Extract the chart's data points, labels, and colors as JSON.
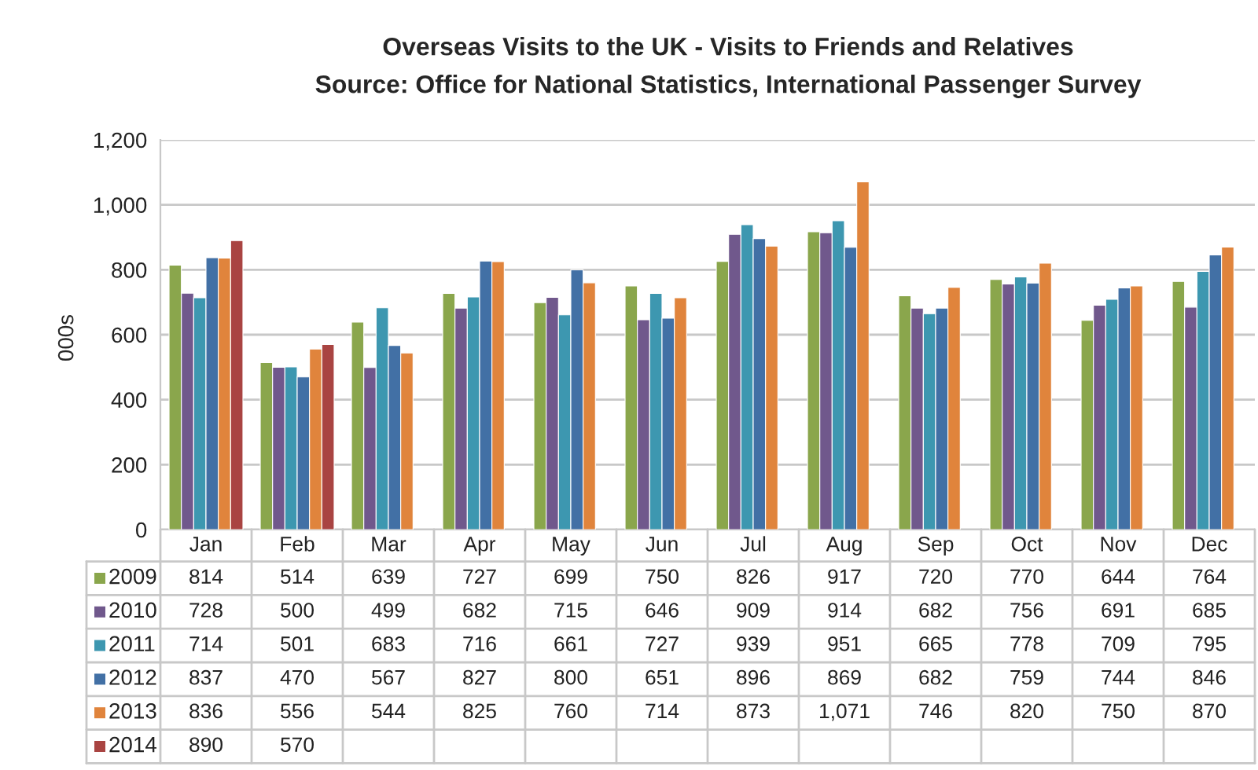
{
  "chart_data": {
    "type": "bar",
    "title": "Overseas Visits to the UK - Visits to Friends and Relatives",
    "annotations": [
      "Source: Office for National Statistics, International Passenger Survey"
    ],
    "ylabel": "000s",
    "categories": [
      "Jan",
      "Feb",
      "Mar",
      "Apr",
      "May",
      "Jun",
      "Jul",
      "Aug",
      "Sep",
      "Oct",
      "Nov",
      "Dec"
    ],
    "series": [
      {
        "name": "2009",
        "color": "#8aa64c",
        "values": [
          814,
          514,
          639,
          727,
          699,
          750,
          826,
          917,
          720,
          770,
          644,
          764
        ],
        "value_labels": [
          "814",
          "514",
          "639",
          "727",
          "699",
          "750",
          "826",
          "917",
          "720",
          "770",
          "644",
          "764"
        ]
      },
      {
        "name": "2010",
        "color": "#70588c",
        "values": [
          728,
          500,
          499,
          682,
          715,
          646,
          909,
          914,
          682,
          756,
          691,
          685
        ],
        "value_labels": [
          "728",
          "500",
          "499",
          "682",
          "715",
          "646",
          "909",
          "914",
          "682",
          "756",
          "691",
          "685"
        ]
      },
      {
        "name": "2011",
        "color": "#3d97b0",
        "values": [
          714,
          501,
          683,
          716,
          661,
          727,
          939,
          951,
          665,
          778,
          709,
          795
        ],
        "value_labels": [
          "714",
          "501",
          "683",
          "716",
          "661",
          "727",
          "939",
          "951",
          "665",
          "778",
          "709",
          "795"
        ]
      },
      {
        "name": "2012",
        "color": "#4270a5",
        "values": [
          837,
          470,
          567,
          827,
          800,
          651,
          896,
          869,
          682,
          759,
          744,
          846
        ],
        "value_labels": [
          "837",
          "470",
          "567",
          "827",
          "800",
          "651",
          "896",
          "869",
          "682",
          "759",
          "744",
          "846"
        ]
      },
      {
        "name": "2013",
        "color": "#e0843c",
        "values": [
          836,
          556,
          544,
          825,
          760,
          714,
          873,
          1071,
          746,
          820,
          750,
          870
        ],
        "value_labels": [
          "836",
          "556",
          "544",
          "825",
          "760",
          "714",
          "873",
          "1,071",
          "746",
          "820",
          "750",
          "870"
        ]
      },
      {
        "name": "2014",
        "color": "#a94442",
        "values": [
          890,
          570,
          null,
          null,
          null,
          null,
          null,
          null,
          null,
          null,
          null,
          null
        ],
        "value_labels": [
          "890",
          "570",
          null,
          null,
          null,
          null,
          null,
          null,
          null,
          null,
          null,
          null
        ]
      }
    ],
    "ylim": [
      0,
      1200
    ],
    "yticks": [
      0,
      200,
      400,
      600,
      800,
      {
        "value": 1000,
        "label": "1,000"
      },
      {
        "value": 1200,
        "label": "1,200"
      }
    ],
    "grid": "y",
    "legend": "bottom"
  }
}
